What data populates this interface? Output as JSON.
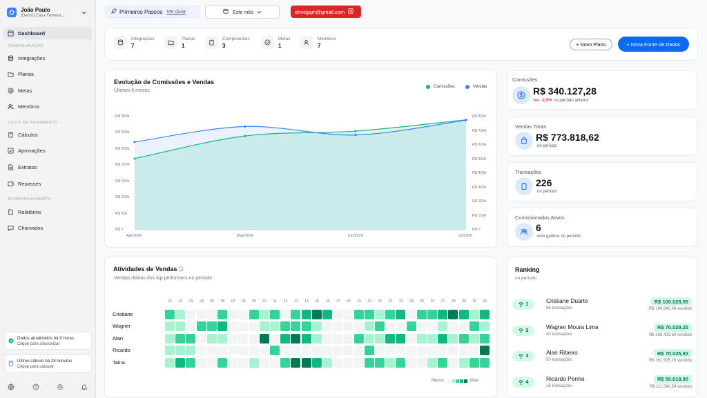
{
  "sidebar": {
    "user_name": "João Paulo",
    "user_org": "(Demo) Casa Ferreira...",
    "dashboard": "Dashboard",
    "section_config": "CONFIGURAÇÃO",
    "config_items": [
      "Integrações",
      "Planos",
      "Metas",
      "Membros"
    ],
    "section_payment": "CICLO DE PAGAMENTO",
    "payment_items": [
      "Cálculos",
      "Aprovações",
      "Extratos",
      "Repasses"
    ],
    "section_tracking": "ACOMPANHAMENTO",
    "tracking_items": [
      "Relatórios",
      "Chamados"
    ],
    "sync_title": "Dados atualizados há 9 horas",
    "sync_action": "Clique para sincronizar",
    "calc_title": "Último cálculo há 28 minutos",
    "calc_action": "Clique para calcular"
  },
  "topbar": {
    "first_steps": "Primeiros Passos",
    "guide_link": "Ver Guia",
    "period": "Este mês",
    "email": "drivejpph@gmail.com"
  },
  "stats": [
    {
      "label": "Integrações",
      "value": "7",
      "icon": "database-icon"
    },
    {
      "label": "Planos",
      "value": "1",
      "icon": "folder-icon"
    },
    {
      "label": "Componentes",
      "value": "3",
      "icon": "clipboard-icon"
    },
    {
      "label": "Metas",
      "value": "1",
      "icon": "target-icon"
    },
    {
      "label": "Membros",
      "value": "7",
      "icon": "users-icon"
    }
  ],
  "actions": {
    "new_plan": "+ Novo Plano",
    "new_source": "+ Nova Fonte de Dados"
  },
  "evolution": {
    "title": "Evolução de Comissões e Vendas",
    "subtitle": "Últimos 6 meses",
    "legend_commissions": "Comissões",
    "legend_sales": "Vendas",
    "left_ticks": [
      "R$ 350k",
      "R$ 300k",
      "R$ 250k",
      "R$ 200k",
      "R$ 150k",
      "R$ 100k",
      "R$ 50k",
      "R$ 0"
    ],
    "right_ticks": [
      "R$ 800k",
      "R$ 700k",
      "R$ 600k",
      "R$ 500k",
      "R$ 400k",
      "R$ 300k",
      "R$ 200k",
      "R$ 100k",
      "R$ 0"
    ],
    "x_ticks": [
      "Apr/2026",
      "May/2026",
      "Jun/2026",
      "Jul/2026"
    ]
  },
  "chart_data": {
    "type": "area",
    "categories": [
      "Apr/2026",
      "May/2026",
      "Jun/2026",
      "Jul/2026"
    ],
    "series": [
      {
        "name": "Comissões",
        "axis": "left",
        "values": [
          220000,
          290000,
          305000,
          340000
        ],
        "color": "#10b981"
      },
      {
        "name": "Vendas",
        "axis": "right",
        "values": [
          620000,
          730000,
          670000,
          775000
        ],
        "color": "#3b82f6"
      }
    ],
    "ylim_left": [
      0,
      350000
    ],
    "ylim_right": [
      0,
      800000
    ]
  },
  "kpis": {
    "commissions": {
      "label": "Comissões",
      "value": "R$ 340.127,28",
      "delta": "-1.5%",
      "delta_note": "vs período anterior"
    },
    "sales": {
      "label": "Vendas Totais",
      "value": "R$ 773.818,62",
      "note": "no período"
    },
    "transactions": {
      "label": "Transações",
      "value": "226",
      "note": "no período"
    },
    "active": {
      "label": "Comissionados Ativos",
      "value": "6",
      "note": "com ganhos no período"
    }
  },
  "activity": {
    "title": "Atividades de Vendas",
    "subtitle": "Vendas diárias dos top performers no período",
    "days": [
      "01",
      "02",
      "03",
      "04",
      "05",
      "06",
      "07",
      "08",
      "09",
      "10",
      "11",
      "12",
      "13",
      "14",
      "15",
      "16",
      "17",
      "18",
      "19",
      "20",
      "21",
      "22",
      "23",
      "24",
      "25",
      "26",
      "27",
      "28",
      "29",
      "30",
      "31"
    ],
    "people": [
      "Cristiane",
      "Wagner",
      "Alan",
      "Ricardo",
      "Taina"
    ],
    "levels": [
      [
        2,
        1,
        0,
        0,
        0,
        2,
        0,
        0,
        2,
        1,
        2,
        0,
        2,
        3,
        4,
        3,
        0,
        0,
        2,
        2,
        1,
        2,
        3,
        0,
        2,
        2,
        3,
        4,
        3,
        1,
        3
      ],
      [
        1,
        1,
        0,
        2,
        2,
        3,
        0,
        0,
        0,
        1,
        1,
        2,
        2,
        2,
        1,
        0,
        0,
        0,
        0,
        1,
        2,
        0,
        0,
        2,
        0,
        0,
        1,
        0,
        0,
        2,
        1
      ],
      [
        1,
        2,
        2,
        0,
        1,
        1,
        0,
        0,
        0,
        4,
        0,
        3,
        4,
        3,
        1,
        0,
        0,
        0,
        2,
        1,
        1,
        3,
        3,
        0,
        1,
        1,
        3,
        1,
        2,
        1,
        2
      ],
      [
        1,
        1,
        1,
        0,
        0,
        0,
        0,
        0,
        0,
        0,
        2,
        0,
        0,
        0,
        0,
        0,
        0,
        0,
        0,
        2,
        0,
        0,
        0,
        0,
        0,
        0,
        0,
        0,
        0,
        0,
        4
      ],
      [
        1,
        3,
        2,
        0,
        0,
        2,
        0,
        0,
        1,
        0,
        0,
        2,
        4,
        4,
        3,
        1,
        0,
        0,
        0,
        2,
        2,
        1,
        2,
        0,
        0,
        1,
        2,
        0,
        1,
        2,
        2
      ]
    ],
    "colors": [
      "#f3f4f6",
      "#a7f3d0",
      "#34d399",
      "#10b981",
      "#047857"
    ],
    "legend_less": "Menos",
    "legend_more": "Mais"
  },
  "ranking": {
    "title": "Ranking",
    "subtitle": "no período",
    "items": [
      {
        "rank": "1",
        "name": "Cristiane Duarte",
        "tx": "56 transações",
        "amount": "R$ 100.028,55",
        "sold": "R$ 196.840,48 vendido"
      },
      {
        "rank": "2",
        "name": "Wagner Moura Lima",
        "tx": "40 transações",
        "amount": "R$ 70.029,25",
        "sold": "R$ 168.433,60 vendido"
      },
      {
        "rank": "3",
        "name": "Alan Ribeiro",
        "tx": "50 transações",
        "amount": "R$ 70.025,92",
        "sold": "R$ 161.505,20 vendido"
      },
      {
        "rank": "4",
        "name": "Ricardo Penha",
        "tx": "26 transações",
        "amount": "R$ 50.018,90",
        "sold": "R$ 111.540,54 vendido"
      }
    ]
  }
}
